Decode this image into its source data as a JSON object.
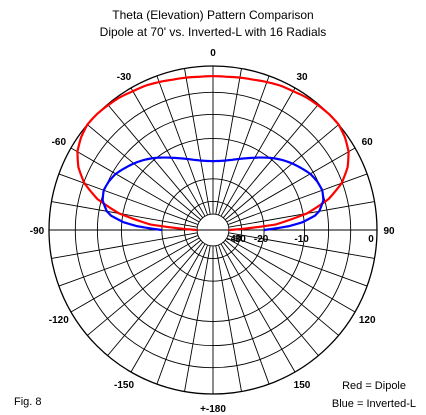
{
  "chart_data": {
    "type": "polar",
    "title": "Theta (Elevation) Pattern Comparison",
    "subtitle": "Dipole at 70' vs. Inverted-L with 16 Radials",
    "angle_ticks": [
      {
        "deg": 0,
        "label": "0"
      },
      {
        "deg": 30,
        "label": "30"
      },
      {
        "deg": -30,
        "label": "-30"
      },
      {
        "deg": 60,
        "label": "60"
      },
      {
        "deg": -60,
        "label": "-60"
      },
      {
        "deg": 90,
        "label": "90"
      },
      {
        "deg": -90,
        "label": "-90"
      },
      {
        "deg": 120,
        "label": "120"
      },
      {
        "deg": -120,
        "label": "-120"
      },
      {
        "deg": 150,
        "label": "150"
      },
      {
        "deg": -150,
        "label": "-150"
      },
      {
        "deg": 180,
        "label": "+-180"
      }
    ],
    "radial_ticks": [
      "0",
      "-10",
      "-20",
      "-30",
      "-40"
    ],
    "series": [
      {
        "name": "Dipole",
        "color": "#ff0000",
        "angle_deg": [
          -90,
          -85,
          -80,
          -75,
          -70,
          -65,
          -60,
          -55,
          -50,
          -45,
          -40,
          -35,
          -30,
          -25,
          -20,
          -15,
          -10,
          -5,
          0,
          5,
          10,
          15,
          20,
          25,
          30,
          35,
          40,
          45,
          50,
          55,
          60,
          65,
          70,
          75,
          80,
          85,
          90
        ],
        "gain_db": [
          -40,
          -16.5,
          -9.3,
          -5.4,
          -3.1,
          -1.7,
          -0.8,
          -0.3,
          0,
          0,
          -0.1,
          -0.2,
          -0.4,
          -0.5,
          -0.7,
          -0.9,
          -1.0,
          -1.1,
          -1.1,
          -1.1,
          -1.0,
          -0.9,
          -0.7,
          -0.5,
          -0.4,
          -0.2,
          -0.1,
          0,
          0,
          -0.3,
          -0.8,
          -1.7,
          -3.1,
          -5.4,
          -9.3,
          -16.5,
          -40
        ]
      },
      {
        "name": "Inverted-L",
        "color": "#0000ff",
        "angle_deg": [
          -90,
          -87,
          -85,
          -82,
          -80,
          -75,
          -70,
          -65,
          -60,
          -55,
          -50,
          -45,
          -40,
          -35,
          -30,
          -25,
          -20,
          -15,
          -10,
          -5,
          0,
          5,
          10,
          15,
          20,
          25,
          30,
          35,
          40,
          45,
          50,
          55,
          60,
          65,
          70,
          75,
          80,
          82,
          85,
          87,
          90
        ],
        "gain_db": [
          -20,
          -13,
          -10.3,
          -8,
          -7.2,
          -6.2,
          -5.9,
          -6.1,
          -6.5,
          -7.2,
          -7.9,
          -8.7,
          -9.6,
          -10.6,
          -11.6,
          -12.5,
          -13.3,
          -14.0,
          -14.5,
          -14.8,
          -14.9,
          -14.8,
          -14.5,
          -14.0,
          -13.3,
          -12.5,
          -11.6,
          -10.6,
          -9.6,
          -8.7,
          -7.9,
          -7.2,
          -6.5,
          -6.1,
          -5.9,
          -6.2,
          -7.2,
          -8,
          -10.3,
          -13,
          -20
        ]
      }
    ],
    "legend": [
      "Red = Dipole",
      "Blue = Inverted-L"
    ],
    "figure_label": "Fig. 8",
    "grid": true,
    "legend_position": "bottom-right"
  }
}
